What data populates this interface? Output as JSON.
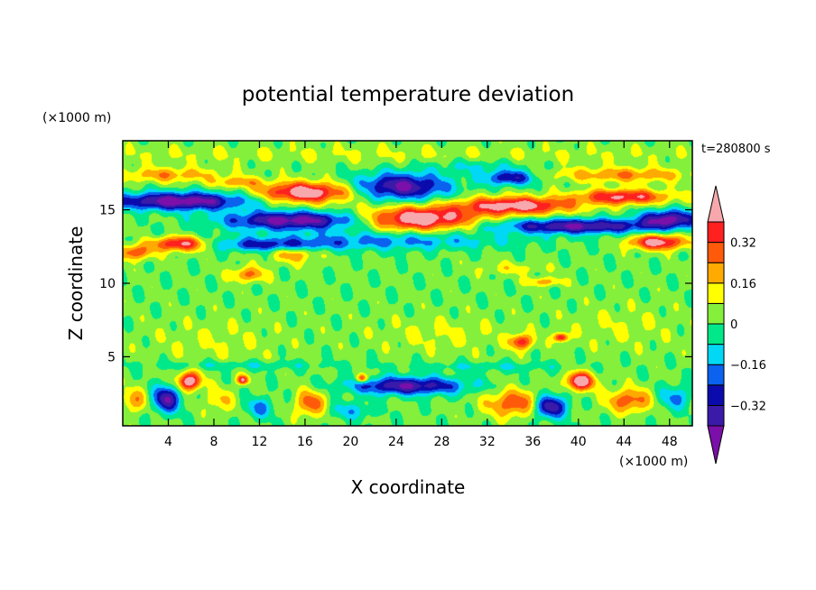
{
  "chart_data": {
    "type": "heatmap",
    "title": "potential temperature deviation",
    "xlabel": "X coordinate",
    "ylabel": "Z coordinate",
    "x_units": "(×1000 m)",
    "y_units": "(×1000 m)",
    "time_label": "t=280800 s",
    "xlim": [
      0,
      50
    ],
    "ylim": [
      0.3,
      19.7
    ],
    "x_ticks": [
      4,
      8,
      12,
      16,
      20,
      24,
      28,
      32,
      36,
      40,
      44,
      48
    ],
    "y_ticks": [
      5,
      10,
      15
    ],
    "colorbar": {
      "levels": [
        -0.4,
        -0.32,
        -0.24,
        -0.16,
        -0.08,
        0,
        0.08,
        0.16,
        0.24,
        0.32,
        0.4
      ],
      "tick_labels": [
        "0.32",
        "0.16",
        "0",
        "−0.16",
        "−0.32"
      ],
      "tick_values": [
        0.32,
        0.16,
        0,
        -0.16,
        -0.32
      ],
      "colors": [
        "#7b0fa9",
        "#3a1aa8",
        "#0b0bad",
        "#0a62ef",
        "#00d8f5",
        "#00e88a",
        "#84f03c",
        "#ffff00",
        "#ffaa00",
        "#ff5a0a",
        "#ff2020",
        "#f7a8ac"
      ],
      "extend": "both"
    },
    "background_value": 0.02,
    "features": [
      {
        "x": 22,
        "z": 18.8,
        "sx": 40,
        "sz": 0.6,
        "v": 0.06
      },
      {
        "x": 4,
        "z": 17.4,
        "sx": 4.5,
        "sz": 0.5,
        "v": 0.2
      },
      {
        "x": 44,
        "z": 17.4,
        "sx": 6,
        "sz": 0.5,
        "v": 0.22
      },
      {
        "x": 10,
        "z": 16.9,
        "sx": 2,
        "sz": 0.35,
        "v": 0.2
      },
      {
        "x": 16,
        "z": 16.2,
        "sx": 4,
        "sz": 0.7,
        "v": 0.48
      },
      {
        "x": 24.5,
        "z": 16.6,
        "sx": 4,
        "sz": 0.9,
        "v": -0.44
      },
      {
        "x": 34,
        "z": 17.2,
        "sx": 2.2,
        "sz": 0.5,
        "v": -0.35
      },
      {
        "x": 31,
        "z": 18.0,
        "sx": 4,
        "sz": 0.5,
        "v": -0.1
      },
      {
        "x": 5,
        "z": 15.6,
        "sx": 6,
        "sz": 0.6,
        "v": -0.5
      },
      {
        "x": 15,
        "z": 14.3,
        "sx": 6,
        "sz": 0.6,
        "v": -0.48
      },
      {
        "x": 26,
        "z": 14.4,
        "sx": 5,
        "sz": 0.8,
        "v": 0.5
      },
      {
        "x": 34.5,
        "z": 15.3,
        "sx": 5,
        "sz": 0.6,
        "v": 0.45
      },
      {
        "x": 44,
        "z": 15.9,
        "sx": 4,
        "sz": 0.5,
        "v": 0.4
      },
      {
        "x": 40,
        "z": 13.9,
        "sx": 7,
        "sz": 0.5,
        "v": -0.44
      },
      {
        "x": 48,
        "z": 14.4,
        "sx": 2.5,
        "sz": 0.6,
        "v": -0.44
      },
      {
        "x": 20,
        "z": 13.0,
        "sx": 14,
        "sz": 0.7,
        "v": -0.14
      },
      {
        "x": 13,
        "z": 12.6,
        "sx": 5,
        "sz": 0.4,
        "v": -0.25
      },
      {
        "x": 25,
        "z": 12.8,
        "sx": 8,
        "sz": 0.5,
        "v": -0.08
      },
      {
        "x": 5,
        "z": 12.7,
        "sx": 2.5,
        "sz": 0.5,
        "v": 0.45
      },
      {
        "x": 1,
        "z": 12.1,
        "sx": 1.5,
        "sz": 0.5,
        "v": 0.3
      },
      {
        "x": 47,
        "z": 12.8,
        "sx": 2.5,
        "sz": 0.5,
        "v": 0.45
      },
      {
        "x": 11,
        "z": 10.6,
        "sx": 1.5,
        "sz": 0.5,
        "v": 0.25
      },
      {
        "x": 15,
        "z": 12.0,
        "sx": 2,
        "sz": 0.6,
        "v": 0.2
      },
      {
        "x": 34,
        "z": 11.0,
        "sx": 3,
        "sz": 0.4,
        "v": 0.1
      },
      {
        "x": 37,
        "z": 10.1,
        "sx": 1.5,
        "sz": 0.3,
        "v": 0.2
      },
      {
        "x": 35,
        "z": 6.0,
        "sx": 1,
        "sz": 0.5,
        "v": 0.35
      },
      {
        "x": 38.5,
        "z": 6.3,
        "sx": 0.6,
        "sz": 0.3,
        "v": 0.4
      },
      {
        "x": 28,
        "z": 6.5,
        "sx": 6,
        "sz": 1.2,
        "v": 0.07
      },
      {
        "x": 8,
        "z": 6.0,
        "sx": 6,
        "sz": 1.5,
        "v": 0.06
      },
      {
        "x": 44,
        "z": 7.0,
        "sx": 5,
        "sz": 1.5,
        "v": 0.06
      },
      {
        "x": 10,
        "z": 4.4,
        "sx": 8,
        "sz": 0.3,
        "v": -0.1
      },
      {
        "x": 32,
        "z": 4.3,
        "sx": 7,
        "sz": 0.3,
        "v": -0.1
      },
      {
        "x": 25,
        "z": 3.0,
        "sx": 5,
        "sz": 0.6,
        "v": -0.42
      },
      {
        "x": 37.5,
        "z": 1.6,
        "sx": 1.5,
        "sz": 0.8,
        "v": -0.45
      },
      {
        "x": 3.8,
        "z": 2.1,
        "sx": 1.2,
        "sz": 0.9,
        "v": -0.42
      },
      {
        "x": 34.5,
        "z": 1.8,
        "sx": 2.5,
        "sz": 0.9,
        "v": 0.3
      },
      {
        "x": 44.5,
        "z": 2.0,
        "sx": 2,
        "sz": 0.8,
        "v": 0.28
      },
      {
        "x": 16.5,
        "z": 1.8,
        "sx": 1.3,
        "sz": 0.9,
        "v": 0.28
      },
      {
        "x": 5.8,
        "z": 3.3,
        "sx": 1,
        "sz": 0.6,
        "v": 0.5
      },
      {
        "x": 40.2,
        "z": 3.3,
        "sx": 1.2,
        "sz": 0.6,
        "v": 0.5
      },
      {
        "x": 10.5,
        "z": 3.4,
        "sx": 0.5,
        "sz": 0.3,
        "v": 0.4
      },
      {
        "x": 21.0,
        "z": 3.5,
        "sx": 0.5,
        "sz": 0.3,
        "v": 0.4
      },
      {
        "x": 1,
        "z": 2.0,
        "sx": 1.2,
        "sz": 0.8,
        "v": 0.2
      },
      {
        "x": 8.5,
        "z": 2.0,
        "sx": 1.2,
        "sz": 0.8,
        "v": 0.15
      },
      {
        "x": 12,
        "z": 1.5,
        "sx": 1.2,
        "sz": 0.7,
        "v": -0.2
      },
      {
        "x": 48.5,
        "z": 2.2,
        "sx": 1.5,
        "sz": 0.8,
        "v": -0.2
      },
      {
        "x": 20,
        "z": 1.3,
        "sx": 2,
        "sz": 0.6,
        "v": -0.15
      }
    ]
  }
}
